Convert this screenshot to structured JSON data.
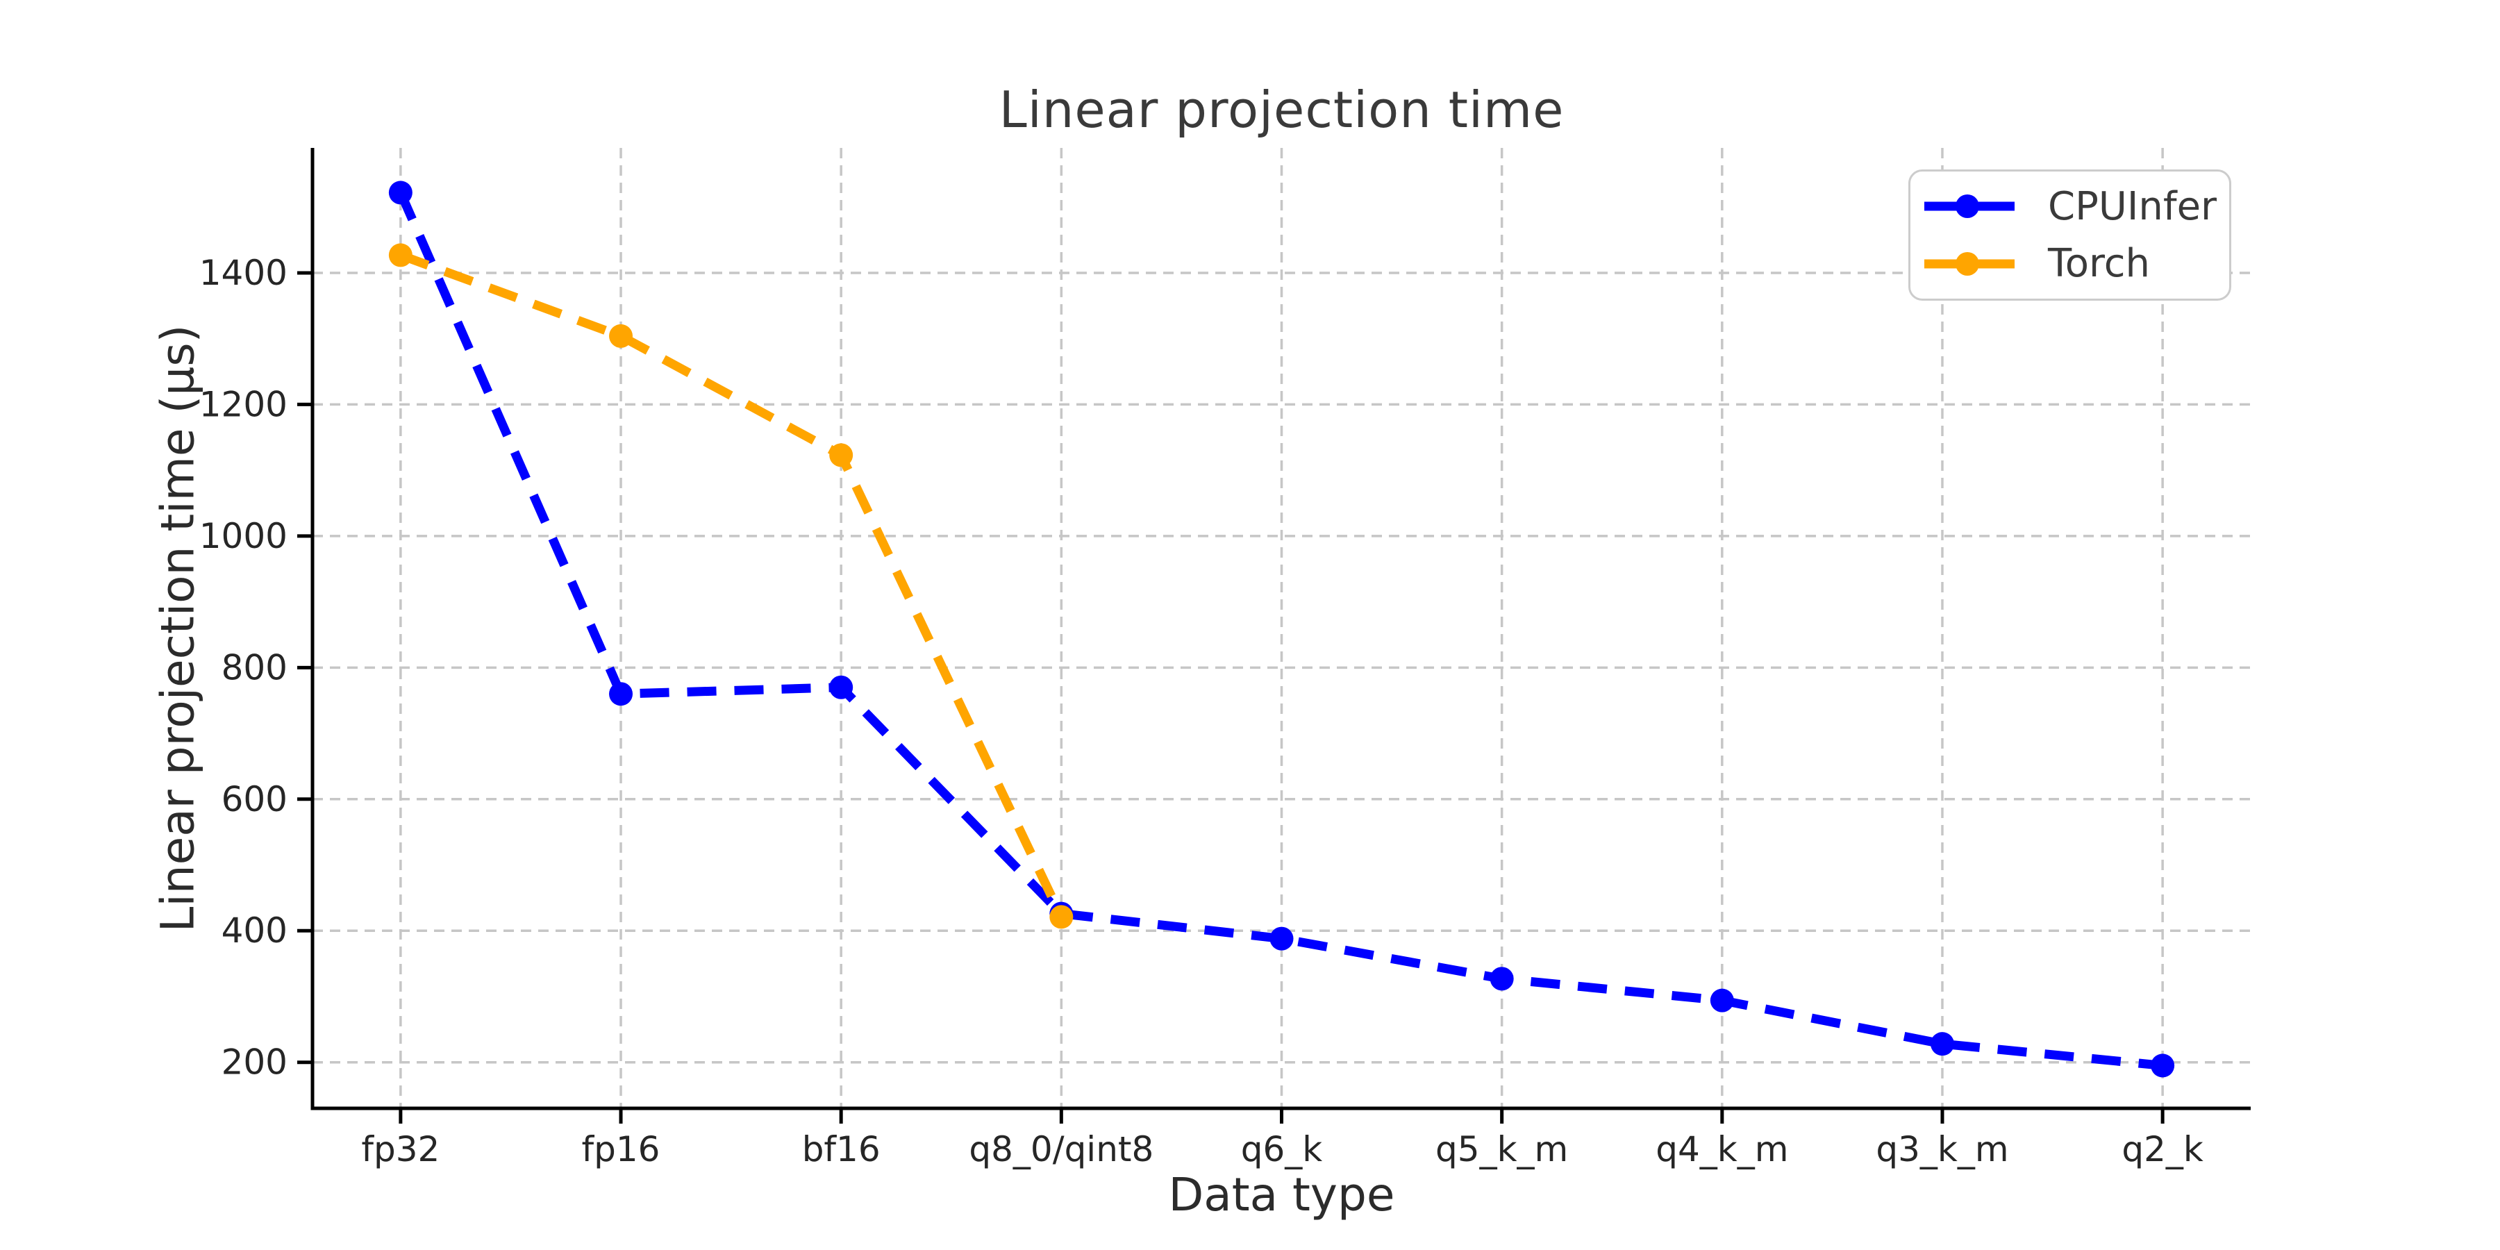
{
  "chart_data": {
    "type": "line",
    "title": "Linear projection time",
    "xlabel": "Data type",
    "ylabel": "Linear projection time (µs)",
    "categories": [
      "fp32",
      "fp16",
      "bf16",
      "q8_0/qint8",
      "q6_k",
      "q5_k_m",
      "q4_k_m",
      "q3_k_m",
      "q2_k"
    ],
    "series": [
      {
        "name": "CPUInfer",
        "color": "#0000FF",
        "values": [
          1522,
          760,
          770,
          426,
          388,
          327,
          294,
          228,
          195
        ]
      },
      {
        "name": "Torch",
        "color": "#FFA500",
        "values": [
          1427,
          1304,
          1123,
          421
        ]
      }
    ],
    "yticks": [
      200,
      400,
      600,
      800,
      1000,
      1200,
      1400
    ],
    "ylim": [
      130,
      1590
    ],
    "line_style": "dashed",
    "marker": "circle",
    "grid": true,
    "legend_position": "upper right",
    "style": {
      "grid_color": "#c6c6c6",
      "spine_color": "#000000",
      "tick_text_color": "#262626",
      "title_color": "#3a3a3a",
      "background": "#ffffff"
    }
  }
}
